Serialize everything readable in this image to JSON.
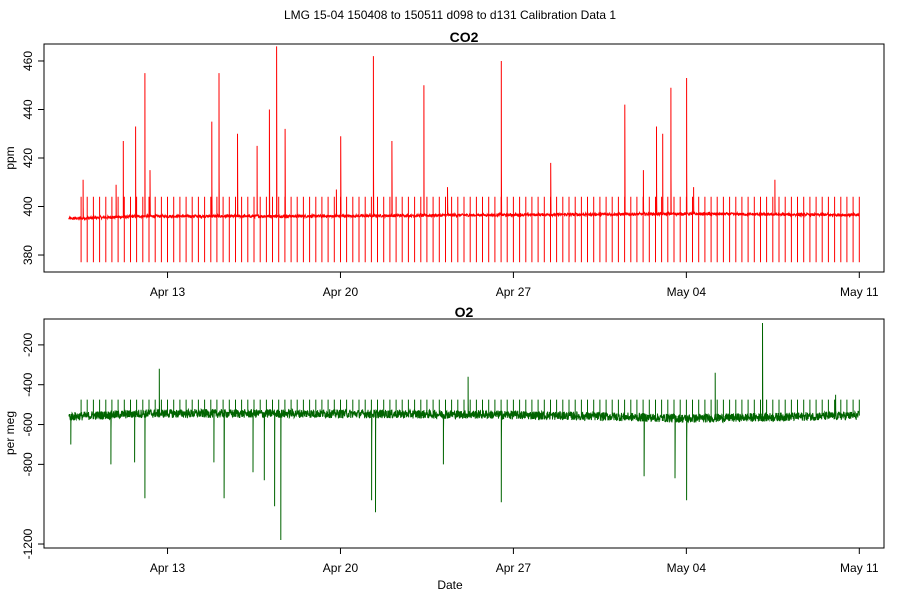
{
  "figure_title": "LMG   15-04    150408 to 150511    d098 to d131   Calibration Data 1",
  "chart_data": [
    {
      "type": "line",
      "title": "CO2",
      "xlabel": "",
      "ylabel": "ppm",
      "x_range": [
        "2015-04-08T00:00",
        "2015-05-12T00:00"
      ],
      "ylim": [
        373,
        467
      ],
      "x_ticks": [
        {
          "date": "2015-04-13",
          "label": "Apr 13"
        },
        {
          "date": "2015-04-20",
          "label": "Apr 20"
        },
        {
          "date": "2015-04-27",
          "label": "Apr 27"
        },
        {
          "date": "2015-05-04",
          "label": "May 04"
        },
        {
          "date": "2015-05-11",
          "label": "May 11"
        }
      ],
      "y_ticks": [
        380,
        400,
        420,
        440,
        460
      ],
      "grid": false,
      "series": [
        {
          "color": "#ff0000",
          "baseline": [
            [
              "2015-04-09T00:00",
              395.0
            ],
            [
              "2015-04-12T00:00",
              396.0
            ],
            [
              "2015-04-19T00:00",
              396.0
            ],
            [
              "2015-04-26T00:00",
              396.5
            ],
            [
              "2015-05-04T00:00",
              397.0
            ],
            [
              "2015-05-11T00:00",
              396.5
            ]
          ],
          "calibration_spikes": {
            "start": "2015-04-09T12:00",
            "end": "2015-05-11T00:00",
            "interval_hours": 6,
            "high": 404,
            "low": 377
          },
          "peaks": [
            [
              "2015-04-09T14:00",
              411
            ],
            [
              "2015-04-10T22:00",
              409
            ],
            [
              "2015-04-11T05:00",
              427
            ],
            [
              "2015-04-11T17:00",
              433
            ],
            [
              "2015-04-12T02:00",
              455
            ],
            [
              "2015-04-12T07:00",
              415
            ],
            [
              "2015-04-14T19:00",
              435
            ],
            [
              "2015-04-15T02:00",
              455
            ],
            [
              "2015-04-15T20:00",
              430
            ],
            [
              "2015-04-16T15:00",
              425
            ],
            [
              "2015-04-17T03:00",
              440
            ],
            [
              "2015-04-17T10:00",
              466
            ],
            [
              "2015-04-17T18:00",
              432
            ],
            [
              "2015-04-19T20:00",
              407
            ],
            [
              "2015-04-20T00:00",
              429
            ],
            [
              "2015-04-21T08:00",
              462
            ],
            [
              "2015-04-22T02:00",
              427
            ],
            [
              "2015-04-23T09:00",
              450
            ],
            [
              "2015-04-24T08:00",
              408
            ],
            [
              "2015-04-26T12:00",
              460
            ],
            [
              "2015-04-28T12:00",
              418
            ],
            [
              "2015-05-01T12:00",
              442
            ],
            [
              "2015-05-02T06:00",
              415
            ],
            [
              "2015-05-02T19:00",
              433
            ],
            [
              "2015-05-03T01:00",
              430
            ],
            [
              "2015-05-03T09:00",
              449
            ],
            [
              "2015-05-04T00:00",
              453
            ],
            [
              "2015-05-04T07:00",
              408
            ],
            [
              "2015-05-07T14:00",
              411
            ]
          ]
        }
      ]
    },
    {
      "type": "line",
      "title": "O2",
      "xlabel": "Date",
      "ylabel": "per meg",
      "x_range": [
        "2015-04-08T00:00",
        "2015-05-12T00:00"
      ],
      "ylim": [
        -1220,
        -70
      ],
      "x_ticks": [
        {
          "date": "2015-04-13",
          "label": "Apr 13"
        },
        {
          "date": "2015-04-20",
          "label": "Apr 20"
        },
        {
          "date": "2015-04-27",
          "label": "Apr 27"
        },
        {
          "date": "2015-05-04",
          "label": "May 04"
        },
        {
          "date": "2015-05-11",
          "label": "May 11"
        }
      ],
      "y_ticks": [
        -1200,
        -800,
        -600,
        -400,
        -200
      ],
      "grid": false,
      "series": [
        {
          "color": "#006400",
          "baseline": [
            [
              "2015-04-09T00:00",
              -560
            ],
            [
              "2015-04-12T00:00",
              -545
            ],
            [
              "2015-04-19T00:00",
              -545
            ],
            [
              "2015-04-26T00:00",
              -550
            ],
            [
              "2015-05-01T00:00",
              -560
            ],
            [
              "2015-05-04T00:00",
              -570
            ],
            [
              "2015-05-11T00:00",
              -555
            ]
          ],
          "calibration_spikes": {
            "start": "2015-04-09T12:00",
            "end": "2015-05-11T00:00",
            "interval_hours": 6,
            "high": -475
          },
          "peaks": [
            [
              "2015-04-09T02:00",
              -700
            ],
            [
              "2015-04-10T17:00",
              -800
            ],
            [
              "2015-04-11T16:00",
              -790
            ],
            [
              "2015-04-12T02:00",
              -970
            ],
            [
              "2015-04-12T16:00",
              -320
            ],
            [
              "2015-04-14T21:00",
              -790
            ],
            [
              "2015-04-15T07:00",
              -970
            ],
            [
              "2015-04-16T11:00",
              -840
            ],
            [
              "2015-04-16T22:00",
              -880
            ],
            [
              "2015-04-17T08:00",
              -1010
            ],
            [
              "2015-04-17T14:00",
              -1180
            ],
            [
              "2015-04-21T06:00",
              -980
            ],
            [
              "2015-04-21T10:00",
              -1040
            ],
            [
              "2015-04-24T04:00",
              -800
            ],
            [
              "2015-04-25T04:00",
              -360
            ],
            [
              "2015-04-26T12:00",
              -990
            ],
            [
              "2015-05-02T07:00",
              -860
            ],
            [
              "2015-05-03T13:00",
              -870
            ],
            [
              "2015-05-04T00:00",
              -980
            ],
            [
              "2015-05-05T04:00",
              -340
            ],
            [
              "2015-05-07T02:00",
              -90
            ],
            [
              "2015-05-10T01:00",
              -450
            ]
          ]
        }
      ]
    }
  ]
}
